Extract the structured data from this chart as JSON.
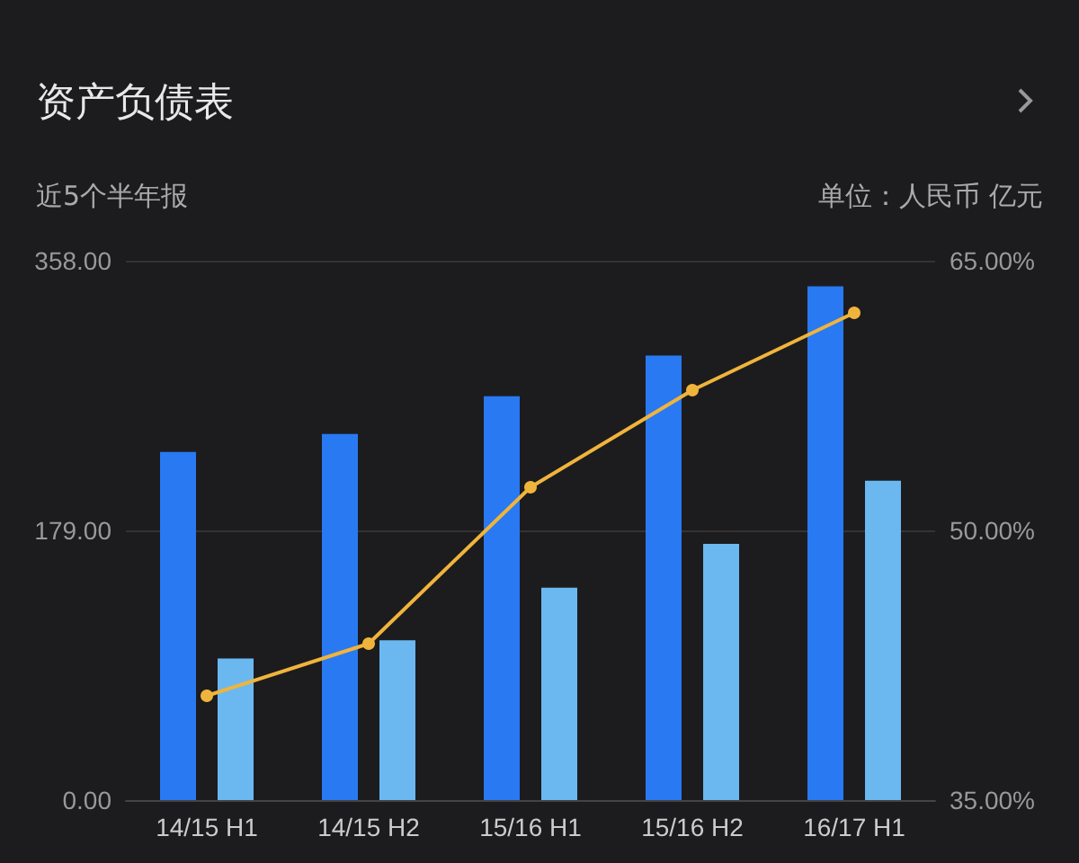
{
  "chart_data": {
    "type": "bar",
    "title": "资产负债表",
    "subtitle": "近5个半年报",
    "annotations": [
      "单位：人民币 亿元"
    ],
    "categories": [
      "14/15 H1",
      "14/15 H2",
      "15/16 H1",
      "15/16 H2",
      "16/17 H1"
    ],
    "series": [
      {
        "color": "#2979f2",
        "values": [
          231,
          243,
          268,
          295,
          341
        ]
      },
      {
        "color": "#6bb8f0",
        "values": [
          94,
          106,
          141,
          170,
          212
        ]
      },
      {
        "type": "line",
        "axis": "y2",
        "color": "#f0b43c",
        "values": [
          40.8,
          43.7,
          52.4,
          57.8,
          62.1
        ]
      }
    ],
    "ylim": [
      0,
      358
    ],
    "yticks": [
      {
        "value": 0,
        "label": "0.00"
      },
      {
        "value": 179,
        "label": "179.00"
      },
      {
        "value": 358,
        "label": "358.00"
      }
    ],
    "y2lim": [
      35,
      65
    ],
    "y2ticks": [
      {
        "value": 35,
        "label": "35.00%"
      },
      {
        "value": 50,
        "label": "50.00%"
      },
      {
        "value": 65,
        "label": "65.00%"
      }
    ],
    "grid": "y",
    "marker": "circle",
    "line_style": "solid"
  }
}
